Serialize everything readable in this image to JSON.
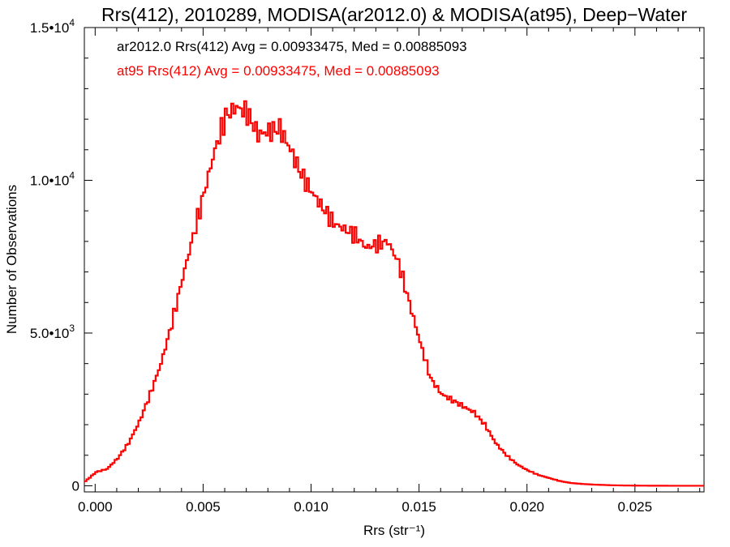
{
  "chart_data": {
    "type": "line",
    "title": "Rrs(412), 2010289, MODISA(ar2012.0) & MODISA(at95), Deep−Water",
    "xlabel": "Rrs (str⁻¹)",
    "ylabel": "Number of Observations",
    "xlim": [
      -0.0005,
      0.0282
    ],
    "ylim": [
      -200,
      15000
    ],
    "x_ticks": [
      {
        "value": 0.0,
        "label": "0.000"
      },
      {
        "value": 0.005,
        "label": "0.005"
      },
      {
        "value": 0.01,
        "label": "0.010"
      },
      {
        "value": 0.015,
        "label": "0.015"
      },
      {
        "value": 0.02,
        "label": "0.020"
      },
      {
        "value": 0.025,
        "label": "0.025"
      }
    ],
    "y_ticks": [
      {
        "value": 0,
        "label": "0",
        "exp": ""
      },
      {
        "value": 5000,
        "label": "5.0•10",
        "exp": "3"
      },
      {
        "value": 10000,
        "label": "1.0•10",
        "exp": "4"
      },
      {
        "value": 15000,
        "label": "1.5•10",
        "exp": "4"
      }
    ],
    "grid": false,
    "legend": [
      {
        "text": "ar2012.0 Rrs(412) Avg = 0.00933475, Med = 0.00885093",
        "color": "#000000"
      },
      {
        "text": "at95 Rrs(412) Avg = 0.00933475, Med = 0.00885093",
        "color": "#ff0000"
      }
    ],
    "series": [
      {
        "color": "#ff0000",
        "x": [
          -0.0005,
          0.0,
          0.0005,
          0.001,
          0.0015,
          0.002,
          0.0025,
          0.003,
          0.0035,
          0.004,
          0.0045,
          0.005,
          0.0055,
          0.006,
          0.0065,
          0.007,
          0.0075,
          0.008,
          0.0085,
          0.009,
          0.0095,
          0.01,
          0.0105,
          0.011,
          0.0115,
          0.012,
          0.0125,
          0.013,
          0.0135,
          0.014,
          0.0145,
          0.015,
          0.0155,
          0.016,
          0.0165,
          0.017,
          0.0175,
          0.018,
          0.0185,
          0.019,
          0.0195,
          0.02,
          0.0205,
          0.021,
          0.0215,
          0.022,
          0.0225,
          0.023,
          0.024,
          0.025,
          0.026,
          0.027,
          0.0282
        ],
        "y": [
          150,
          450,
          550,
          900,
          1400,
          2100,
          3000,
          4000,
          5300,
          6800,
          8200,
          9600,
          11000,
          12100,
          12400,
          12200,
          11500,
          11600,
          11700,
          11000,
          10200,
          9600,
          9100,
          8600,
          8400,
          8200,
          7800,
          7900,
          8000,
          7300,
          6000,
          4700,
          3500,
          3000,
          2800,
          2600,
          2400,
          2000,
          1400,
          1000,
          700,
          500,
          350,
          250,
          150,
          90,
          60,
          40,
          15,
          5,
          2,
          0,
          0
        ]
      }
    ]
  }
}
